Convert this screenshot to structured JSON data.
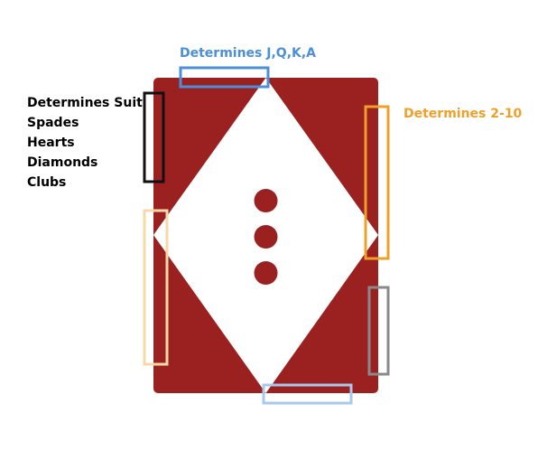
{
  "labels": {
    "face_cards": "Determines J,Q,K,A",
    "number_cards": "Determines 2-10",
    "suit_title": "Determines Suit",
    "suits": [
      "Spades",
      "Hearts",
      "Diamonds",
      "Clubs"
    ]
  },
  "colors": {
    "card_red": "#9b2121",
    "diamond_fill": "#ffffff",
    "pip": "#9b2121",
    "face_region": "#4a8fd9",
    "face_region_faded": "#a9c9ec",
    "number_region": "#f0a02a",
    "number_region_faded": "#f7d9a8",
    "suit_region": "#111111",
    "gray_region": "#8a8a8a",
    "face_label": "#4a8fd9",
    "number_label": "#f0a02a",
    "suit_label": "#000000"
  },
  "card": {
    "pip_count": 3
  }
}
